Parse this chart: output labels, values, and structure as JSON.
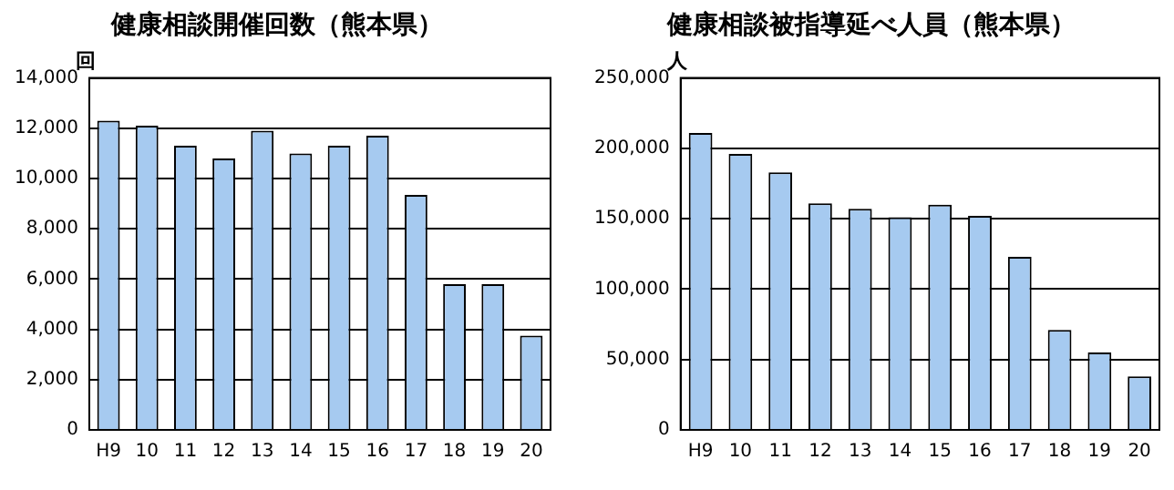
{
  "chart_data": [
    {
      "type": "bar",
      "title": "健康相談開催回数（熊本県）",
      "ylabel": "回",
      "categories": [
        "H9",
        "10",
        "11",
        "12",
        "13",
        "14",
        "15",
        "16",
        "17",
        "18",
        "19",
        "20"
      ],
      "series": [
        {
          "color": "#a6caf0",
          "values": [
            12300,
            12100,
            11300,
            10800,
            11900,
            11000,
            11300,
            11700,
            9350,
            5800,
            5800,
            3750
          ]
        }
      ],
      "ylim": [
        0,
        14000
      ],
      "yticks": [
        0,
        {
          "value": 2000,
          "label": "2,000"
        },
        {
          "value": 4000,
          "label": "4,000"
        },
        {
          "value": 6000,
          "label": "6,000"
        },
        {
          "value": 8000,
          "label": "8,000"
        },
        {
          "value": 10000,
          "label": "10,000"
        },
        {
          "value": 12000,
          "label": "12,000"
        },
        {
          "value": 14000,
          "label": "14,000"
        }
      ],
      "grid": "y",
      "legend": false
    },
    {
      "type": "bar",
      "title": "健康相談被指導延べ人員（熊本県）",
      "ylabel": "人",
      "categories": [
        "H9",
        "10",
        "11",
        "12",
        "13",
        "14",
        "15",
        "16",
        "17",
        "18",
        "19",
        "20"
      ],
      "series": [
        {
          "color": "#a6caf0",
          "values": [
            211000,
            196000,
            183000,
            161000,
            157000,
            151000,
            160000,
            152000,
            123000,
            71000,
            55000,
            38000
          ]
        }
      ],
      "ylim": [
        0,
        250000
      ],
      "yticks": [
        0,
        {
          "value": 50000,
          "label": "50,000"
        },
        {
          "value": 100000,
          "label": "100,000"
        },
        {
          "value": 150000,
          "label": "150,000"
        },
        {
          "value": 200000,
          "label": "200,000"
        },
        {
          "value": 250000,
          "label": "250,000"
        }
      ],
      "grid": "y",
      "legend": false
    }
  ]
}
